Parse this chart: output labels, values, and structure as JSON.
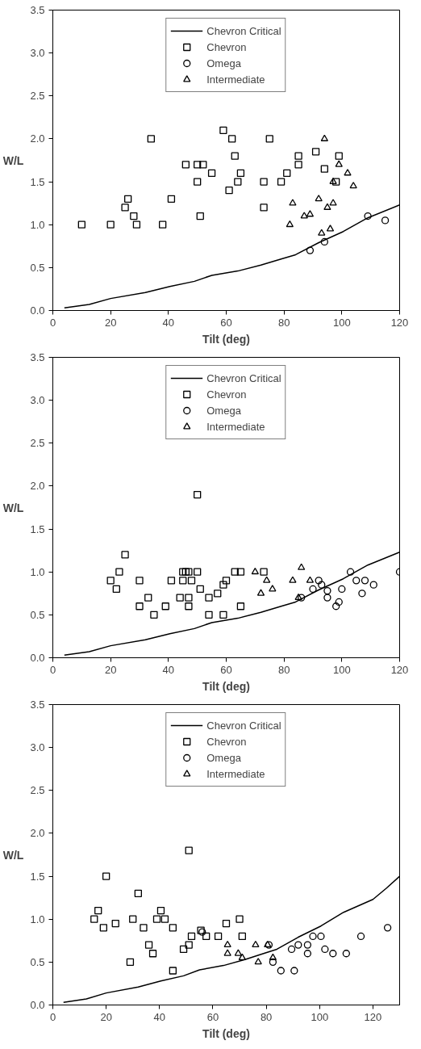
{
  "chart_data": [
    {
      "type": "scatter",
      "xlabel": "Tilt (deg)",
      "ylabel": "W/L",
      "xlim": [
        0,
        120
      ],
      "xticks": [
        0,
        20,
        40,
        60,
        80,
        100,
        120
      ],
      "ylim": [
        0,
        3.5
      ],
      "yticks": [
        {
          "value": 0,
          "label": "0.0"
        },
        0.5,
        {
          "value": 1,
          "label": "1.0"
        },
        1.5,
        {
          "value": 2,
          "label": "2.0"
        },
        2.5,
        {
          "value": 3,
          "label": "3.0"
        },
        3.5
      ],
      "grid": false,
      "legend": "top",
      "series": [
        {
          "name": "Chevron Critical",
          "type": "line",
          "color": "#000000",
          "x": [
            4,
            12.6,
            20,
            32,
            40.5,
            49,
            55,
            64,
            72,
            79,
            84,
            92,
            100.5,
            109,
            120
          ],
          "values": [
            0.03,
            0.07,
            0.14,
            0.21,
            0.28,
            0.34,
            0.41,
            0.46,
            0.53,
            0.6,
            0.65,
            0.79,
            0.92,
            1.08,
            1.23
          ]
        },
        {
          "name": "Chevron",
          "marker": "square",
          "color": "#000000",
          "x": [
            10,
            20,
            25,
            26,
            28,
            29,
            34,
            38,
            41,
            46,
            50,
            50,
            52,
            51,
            55,
            59,
            61,
            62,
            63,
            64,
            65,
            73,
            73,
            75,
            79,
            81,
            85,
            85,
            91,
            94,
            98,
            99
          ],
          "values": [
            1.0,
            1.0,
            1.2,
            1.3,
            1.1,
            1.0,
            2.0,
            1.0,
            1.3,
            1.7,
            1.7,
            1.5,
            1.7,
            1.1,
            1.6,
            2.1,
            1.4,
            2.0,
            1.8,
            1.5,
            1.6,
            1.5,
            1.2,
            2.0,
            1.5,
            1.6,
            1.8,
            1.7,
            1.85,
            1.65,
            1.5,
            1.8
          ]
        },
        {
          "name": "Omega",
          "marker": "circle",
          "color": "#000000",
          "x": [
            89,
            94,
            109,
            115
          ],
          "values": [
            0.7,
            0.8,
            1.1,
            1.05
          ]
        },
        {
          "name": "Intermediate",
          "marker": "triangle",
          "color": "#000000",
          "x": [
            82,
            83,
            87,
            89,
            92,
            94,
            93,
            95,
            96,
            97,
            97,
            99,
            102,
            104
          ],
          "values": [
            1.0,
            1.25,
            1.1,
            1.12,
            1.3,
            2.0,
            0.9,
            1.2,
            0.95,
            1.25,
            1.5,
            1.7,
            1.6,
            1.45
          ]
        }
      ]
    },
    {
      "type": "scatter",
      "xlabel": "Tilt (deg)",
      "ylabel": "W/L",
      "xlim": [
        0,
        120
      ],
      "xticks": [
        0,
        20,
        40,
        60,
        80,
        100,
        120
      ],
      "ylim": [
        0,
        3.5
      ],
      "yticks": [
        {
          "value": 0,
          "label": "0.0"
        },
        0.5,
        {
          "value": 1,
          "label": "1.0"
        },
        1.5,
        {
          "value": 2,
          "label": "2.0"
        },
        2.5,
        {
          "value": 3,
          "label": "3.0"
        },
        3.5
      ],
      "grid": false,
      "legend": "top",
      "series": [
        {
          "name": "Chevron Critical",
          "type": "line",
          "color": "#000000",
          "x": [
            4,
            12.6,
            20,
            32,
            40.5,
            49,
            55,
            64,
            72,
            79,
            84,
            92,
            100.5,
            109,
            120
          ],
          "values": [
            0.03,
            0.07,
            0.14,
            0.21,
            0.28,
            0.34,
            0.41,
            0.46,
            0.53,
            0.6,
            0.65,
            0.79,
            0.92,
            1.08,
            1.23
          ]
        },
        {
          "name": "Chevron",
          "marker": "square",
          "color": "#000000",
          "x": [
            20,
            22,
            23,
            25,
            30,
            30,
            33,
            35,
            39,
            41,
            44,
            45,
            46,
            47,
            45,
            48,
            47,
            47,
            50,
            50,
            51,
            54,
            54,
            57,
            59,
            60,
            59,
            63,
            65,
            65,
            73
          ],
          "values": [
            0.9,
            0.8,
            1.0,
            1.2,
            0.9,
            0.6,
            0.7,
            0.5,
            0.6,
            0.9,
            0.7,
            1.0,
            1.0,
            1.0,
            0.9,
            0.9,
            0.7,
            0.6,
            1.9,
            1.0,
            0.8,
            0.7,
            0.5,
            0.75,
            0.85,
            0.9,
            0.5,
            1.0,
            1.0,
            0.6,
            1.0
          ]
        },
        {
          "name": "Omega",
          "marker": "circle",
          "color": "#000000",
          "x": [
            86,
            90,
            92,
            93,
            95,
            95,
            98,
            99,
            100,
            103,
            105,
            108,
            107,
            111,
            120
          ],
          "values": [
            0.7,
            0.8,
            0.9,
            0.85,
            0.78,
            0.7,
            0.6,
            0.65,
            0.8,
            1.0,
            0.9,
            0.9,
            0.75,
            0.85,
            1.0
          ]
        },
        {
          "name": "Intermediate",
          "marker": "triangle",
          "color": "#000000",
          "x": [
            70,
            72,
            74,
            76,
            83,
            86,
            85,
            89
          ],
          "values": [
            1.0,
            0.75,
            0.9,
            0.8,
            0.9,
            1.05,
            0.7,
            0.9
          ]
        }
      ]
    },
    {
      "type": "scatter",
      "xlabel": "Tilt (deg)",
      "ylabel": "W/L",
      "xlim": [
        0,
        130
      ],
      "xticks": [
        0,
        20,
        40,
        60,
        80,
        100,
        120
      ],
      "ylim": [
        0,
        3.5
      ],
      "yticks": [
        {
          "value": 0,
          "label": "0.0"
        },
        0.5,
        {
          "value": 1,
          "label": "1.0"
        },
        1.5,
        {
          "value": 2,
          "label": "2.0"
        },
        2.5,
        {
          "value": 3,
          "label": "3.0"
        },
        3.5
      ],
      "grid": false,
      "legend": "top",
      "series": [
        {
          "name": "Chevron Critical",
          "type": "line",
          "color": "#000000",
          "x": [
            4,
            12.6,
            20,
            32,
            40.5,
            49,
            55,
            64,
            72,
            79,
            84,
            92,
            100.5,
            109,
            120,
            125,
            130
          ],
          "values": [
            0.03,
            0.07,
            0.14,
            0.21,
            0.28,
            0.34,
            0.41,
            0.46,
            0.53,
            0.6,
            0.65,
            0.79,
            0.92,
            1.08,
            1.23,
            1.36,
            1.5
          ]
        },
        {
          "name": "Chevron",
          "marker": "square",
          "color": "#000000",
          "x": [
            15.5,
            17,
            19,
            20,
            23.5,
            29,
            30,
            32,
            34,
            36,
            37.5,
            39,
            40.5,
            42,
            45,
            45,
            49,
            51,
            52,
            51,
            55.5,
            57.5,
            62,
            65,
            70,
            71
          ],
          "values": [
            1.0,
            1.1,
            0.9,
            1.5,
            0.95,
            0.5,
            1.0,
            1.3,
            0.9,
            0.7,
            0.6,
            1.0,
            1.1,
            1.0,
            0.9,
            0.4,
            0.65,
            0.7,
            0.8,
            1.8,
            0.87,
            0.8,
            0.8,
            0.95,
            1.0,
            0.8
          ]
        },
        {
          "name": "Omega",
          "marker": "circle",
          "color": "#000000",
          "x": [
            56,
            81,
            82.5,
            85.5,
            89.5,
            90.5,
            92,
            95.5,
            95.5,
            97.5,
            100.5,
            102,
            105,
            110,
            115.5,
            125.5
          ],
          "values": [
            0.85,
            0.7,
            0.5,
            0.4,
            0.65,
            0.4,
            0.7,
            0.7,
            0.6,
            0.8,
            0.8,
            0.65,
            0.6,
            0.6,
            0.8,
            0.9
          ]
        },
        {
          "name": "Intermediate",
          "marker": "triangle",
          "color": "#000000",
          "x": [
            65.5,
            65.5,
            69.5,
            71,
            76,
            77,
            80.5,
            82.5
          ],
          "values": [
            0.7,
            0.6,
            0.6,
            0.55,
            0.7,
            0.5,
            0.7,
            0.55
          ]
        }
      ]
    }
  ]
}
